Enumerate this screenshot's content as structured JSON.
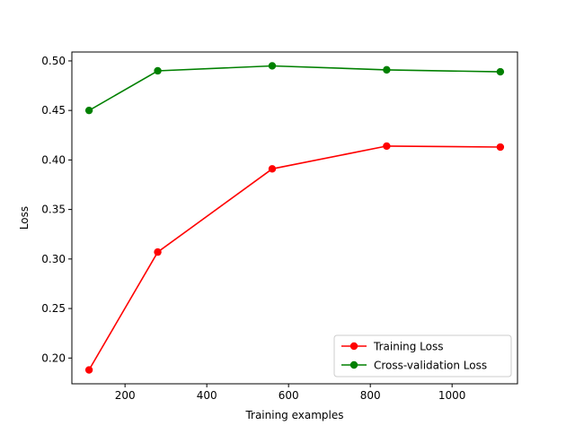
{
  "chart_data": {
    "type": "line",
    "title": "",
    "xlabel": "Training examples",
    "ylabel": "Loss",
    "xlim": [
      70,
      1160
    ],
    "ylim": [
      0.174,
      0.509
    ],
    "xticks": [
      200,
      400,
      600,
      800,
      1000
    ],
    "xtick_labels": [
      "200",
      "400",
      "600",
      "800",
      "1000"
    ],
    "yticks": [
      0.2,
      0.25,
      0.3,
      0.35,
      0.4,
      0.45,
      0.5
    ],
    "ytick_labels": [
      "0.20",
      "0.25",
      "0.30",
      "0.35",
      "0.40",
      "0.45",
      "0.50"
    ],
    "grid": false,
    "legend_position": "lower right",
    "x": [
      112,
      280,
      560,
      840,
      1118
    ],
    "series": [
      {
        "name": "Training Loss",
        "color": "#ff0000",
        "marker": "circle",
        "values": [
          0.188,
          0.307,
          0.391,
          0.414,
          0.413
        ]
      },
      {
        "name": "Cross-validation Loss",
        "color": "#008000",
        "marker": "circle",
        "values": [
          0.45,
          0.49,
          0.495,
          0.491,
          0.489
        ]
      }
    ]
  }
}
